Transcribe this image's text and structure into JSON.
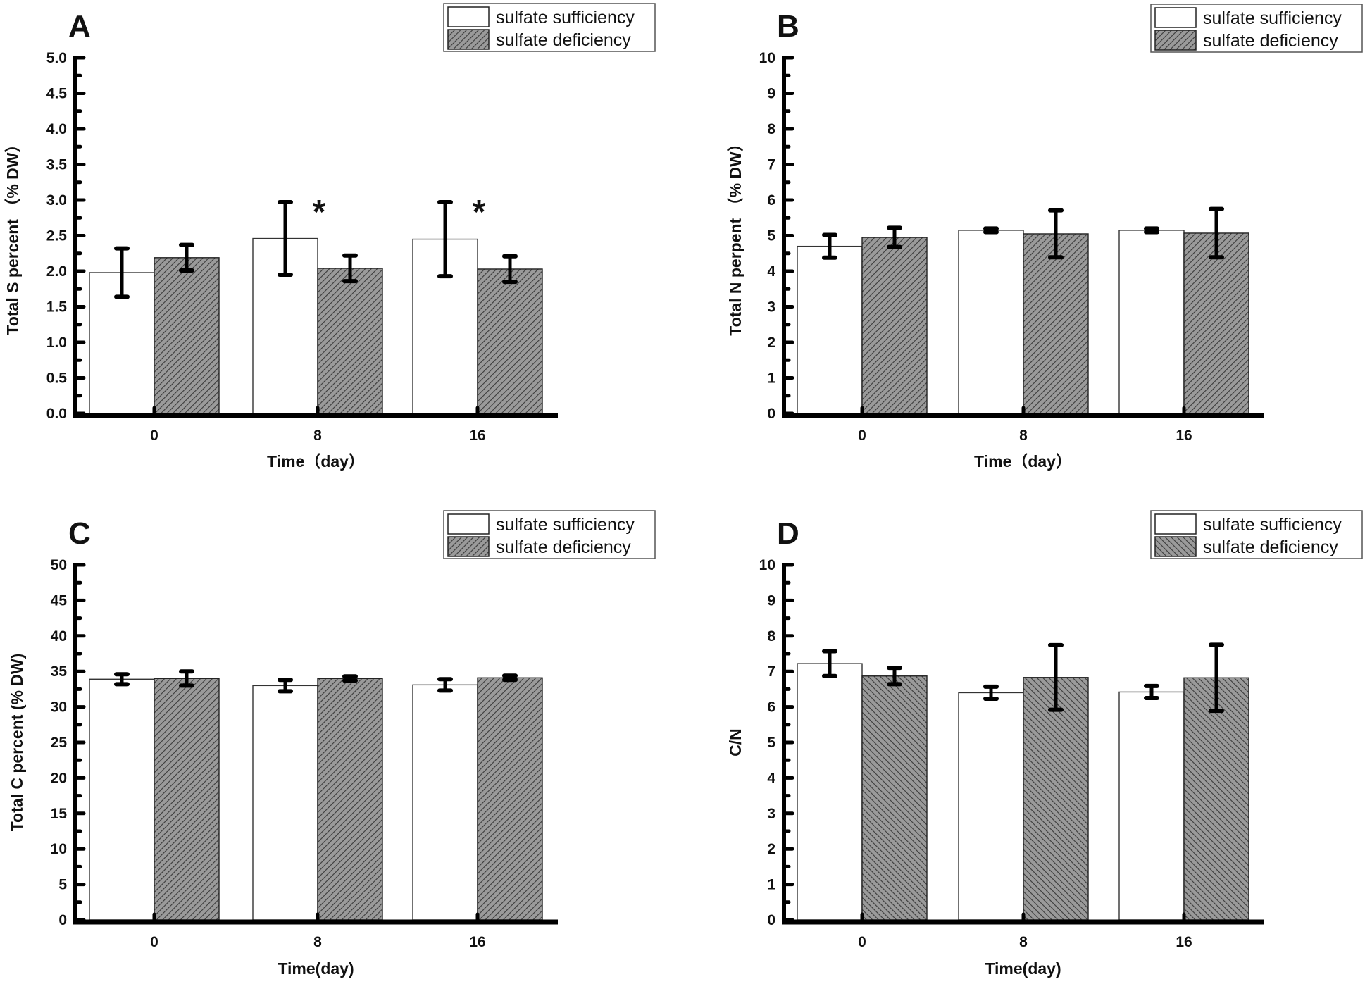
{
  "figure": {
    "legend": {
      "items": [
        {
          "label": "sulfate sufficiency",
          "fill": "#ffffff"
        },
        {
          "label": "sulfate deficiency",
          "fill": "#8a8a8a"
        }
      ]
    }
  },
  "chart_data": [
    {
      "type": "bar",
      "panel": "A",
      "title": "",
      "xlabel": "Time（day）",
      "ylabel": "Total S percent （% DW）",
      "categories": [
        "0",
        "8",
        "16"
      ],
      "ylim": [
        0,
        5.0
      ],
      "yticks": [
        "0.0",
        "0.5",
        "1.0",
        "1.5",
        "2.0",
        "2.5",
        "3.0",
        "3.5",
        "4.0",
        "4.5",
        "5.0"
      ],
      "ytick_values": [
        0,
        0.5,
        1.0,
        1.5,
        2.0,
        2.5,
        3.0,
        3.5,
        4.0,
        4.5,
        5.0
      ],
      "minor_ticks_per_major": 1,
      "legend_position": "top-right",
      "hatch": "backslash",
      "series": [
        {
          "name": "sulfate sufficiency",
          "values": [
            1.98,
            2.46,
            2.45
          ],
          "errors": [
            0.34,
            0.51,
            0.52
          ]
        },
        {
          "name": "sulfate deficiency",
          "values": [
            2.19,
            2.04,
            2.03
          ],
          "errors": [
            0.18,
            0.18,
            0.18
          ]
        }
      ],
      "annotations": [
        {
          "text": "*",
          "category": "8"
        },
        {
          "text": "*",
          "category": "16"
        }
      ],
      "grid": false
    },
    {
      "type": "bar",
      "panel": "B",
      "title": "",
      "xlabel": "Time（day）",
      "ylabel": "Total N perpent （% DW）",
      "categories": [
        "0",
        "8",
        "16"
      ],
      "ylim": [
        0,
        10
      ],
      "yticks": [
        "0",
        "1",
        "2",
        "3",
        "4",
        "5",
        "6",
        "7",
        "8",
        "9",
        "10"
      ],
      "ytick_values": [
        0,
        1,
        2,
        3,
        4,
        5,
        6,
        7,
        8,
        9,
        10
      ],
      "minor_ticks_per_major": 1,
      "legend_position": "top-right",
      "hatch": "backslash",
      "series": [
        {
          "name": "sulfate sufficiency",
          "values": [
            4.7,
            5.15,
            5.15
          ],
          "errors": [
            0.32,
            0.05,
            0.05
          ]
        },
        {
          "name": "sulfate deficiency",
          "values": [
            4.95,
            5.05,
            5.07
          ],
          "errors": [
            0.27,
            0.66,
            0.68
          ]
        }
      ],
      "annotations": [],
      "grid": false
    },
    {
      "type": "bar",
      "panel": "C",
      "title": "",
      "xlabel": "Time(day)",
      "ylabel": "Total C percent  (% DW)",
      "categories": [
        "0",
        "8",
        "16"
      ],
      "ylim": [
        0,
        50
      ],
      "yticks": [
        "0",
        "5",
        "10",
        "15",
        "20",
        "25",
        "30",
        "35",
        "40",
        "45",
        "50"
      ],
      "ytick_values": [
        0,
        5,
        10,
        15,
        20,
        25,
        30,
        35,
        40,
        45,
        50
      ],
      "minor_ticks_per_major": 1,
      "legend_position": "top-right",
      "hatch": "backslash",
      "series": [
        {
          "name": "sulfate sufficiency",
          "values": [
            33.9,
            33.0,
            33.1
          ],
          "errors": [
            0.7,
            0.8,
            0.8
          ]
        },
        {
          "name": "sulfate deficiency",
          "values": [
            34.0,
            34.0,
            34.1
          ],
          "errors": [
            1.0,
            0.3,
            0.3
          ]
        }
      ],
      "annotations": [],
      "grid": false
    },
    {
      "type": "bar",
      "panel": "D",
      "title": "",
      "xlabel": "Time(day)",
      "ylabel": "C/N",
      "categories": [
        "0",
        "8",
        "16"
      ],
      "ylim": [
        0,
        10
      ],
      "yticks": [
        "0",
        "1",
        "2",
        "3",
        "4",
        "5",
        "6",
        "7",
        "8",
        "9",
        "10"
      ],
      "ytick_values": [
        0,
        1,
        2,
        3,
        4,
        5,
        6,
        7,
        8,
        9,
        10
      ],
      "minor_ticks_per_major": 1,
      "legend_position": "top-right",
      "hatch": "slash",
      "series": [
        {
          "name": "sulfate sufficiency",
          "values": [
            7.22,
            6.4,
            6.42
          ],
          "errors": [
            0.35,
            0.17,
            0.17
          ]
        },
        {
          "name": "sulfate deficiency",
          "values": [
            6.87,
            6.83,
            6.82
          ],
          "errors": [
            0.23,
            0.91,
            0.93
          ]
        }
      ],
      "annotations": [],
      "grid": false
    }
  ]
}
